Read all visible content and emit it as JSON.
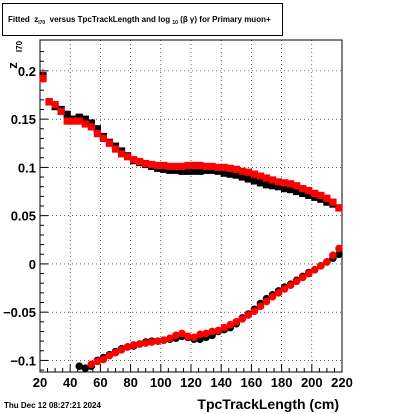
{
  "title": {
    "prefix": "Fitted",
    "z": "z",
    "z_sub": "I70",
    "middle": "versus TpcTrackLength and log",
    "log_sub": "10",
    "bg": "(β γ)",
    "suffix": "for Primary muon+"
  },
  "ylabel": {
    "main": "z",
    "sub": "I70"
  },
  "xlabel": "TpcTrackLength (cm)",
  "timestamp": "Thu Dec 12 08:27:21 2024",
  "colors": {
    "series_a": "#000000",
    "series_b": "#ff0000"
  },
  "chart_data": {
    "type": "scatter",
    "xlim": [
      20,
      220
    ],
    "ylim": [
      -0.112,
      0.232
    ],
    "xticks": [
      20,
      40,
      60,
      80,
      100,
      120,
      140,
      160,
      180,
      200,
      220
    ],
    "yticks": [
      -0.1,
      -0.05,
      0,
      0.05,
      0.1,
      0.15,
      0.2
    ],
    "ytick_labels": [
      "−0.1",
      "−0.05",
      "0",
      "0.05",
      "0.1",
      "0.15",
      "0.2"
    ],
    "grid": true,
    "series": [
      {
        "marker": "square",
        "color": "#000000",
        "x": [
          22,
          26,
          30,
          34,
          38,
          42,
          46,
          50,
          54,
          58,
          62,
          66,
          70,
          74,
          78,
          82,
          86,
          90,
          94,
          98,
          102,
          106,
          110,
          114,
          118,
          122,
          126,
          130,
          134,
          138,
          142,
          146,
          150,
          154,
          158,
          162,
          166,
          170,
          174,
          178,
          182,
          186,
          190,
          194,
          198,
          202,
          206,
          210,
          214,
          218
        ],
        "y": [
          0.195,
          0.168,
          0.163,
          0.16,
          0.155,
          0.15,
          0.152,
          0.15,
          0.146,
          0.14,
          0.132,
          0.126,
          0.122,
          0.117,
          0.112,
          0.107,
          0.105,
          0.103,
          0.101,
          0.099,
          0.098,
          0.097,
          0.097,
          0.096,
          0.096,
          0.096,
          0.096,
          0.097,
          0.097,
          0.096,
          0.094,
          0.093,
          0.092,
          0.09,
          0.088,
          0.086,
          0.084,
          0.082,
          0.081,
          0.08,
          0.078,
          0.077,
          0.075,
          0.073,
          0.071,
          0.069,
          0.067,
          0.064,
          0.062,
          0.058
        ]
      },
      {
        "marker": "square",
        "color": "#ff0000",
        "x": [
          22,
          26,
          30,
          34,
          38,
          42,
          46,
          50,
          54,
          58,
          62,
          66,
          70,
          74,
          78,
          82,
          86,
          90,
          94,
          98,
          102,
          106,
          110,
          114,
          118,
          122,
          126,
          130,
          134,
          138,
          142,
          146,
          150,
          154,
          158,
          162,
          166,
          170,
          174,
          178,
          182,
          186,
          190,
          194,
          198,
          202,
          206,
          210,
          214,
          218
        ],
        "y": [
          0.192,
          0.168,
          0.165,
          0.158,
          0.148,
          0.148,
          0.148,
          0.145,
          0.142,
          0.135,
          0.13,
          0.125,
          0.119,
          0.114,
          0.111,
          0.108,
          0.106,
          0.104,
          0.103,
          0.102,
          0.102,
          0.101,
          0.101,
          0.101,
          0.102,
          0.102,
          0.102,
          0.101,
          0.101,
          0.1,
          0.1,
          0.099,
          0.098,
          0.096,
          0.095,
          0.093,
          0.091,
          0.089,
          0.087,
          0.085,
          0.084,
          0.083,
          0.081,
          0.078,
          0.076,
          0.073,
          0.071,
          0.068,
          0.064,
          0.058
        ]
      },
      {
        "marker": "circle",
        "color": "#000000",
        "x": [
          46,
          50,
          54,
          58,
          62,
          66,
          70,
          74,
          78,
          82,
          86,
          90,
          94,
          98,
          102,
          106,
          110,
          114,
          118,
          122,
          126,
          130,
          134,
          138,
          142,
          146,
          150,
          154,
          158,
          162,
          166,
          170,
          174,
          178,
          182,
          186,
          190,
          194,
          198,
          202,
          206,
          210,
          214,
          218
        ],
        "y": [
          -0.106,
          -0.108,
          -0.106,
          -0.1,
          -0.097,
          -0.094,
          -0.091,
          -0.088,
          -0.086,
          -0.085,
          -0.083,
          -0.081,
          -0.08,
          -0.08,
          -0.079,
          -0.078,
          -0.077,
          -0.075,
          -0.076,
          -0.078,
          -0.078,
          -0.076,
          -0.074,
          -0.07,
          -0.068,
          -0.066,
          -0.062,
          -0.056,
          -0.052,
          -0.047,
          -0.041,
          -0.036,
          -0.032,
          -0.028,
          -0.024,
          -0.021,
          -0.017,
          -0.013,
          -0.009,
          -0.006,
          -0.002,
          0.002,
          0.006,
          0.01
        ]
      },
      {
        "marker": "circle",
        "color": "#ff0000",
        "x": [
          54,
          58,
          62,
          66,
          70,
          74,
          78,
          82,
          86,
          90,
          94,
          98,
          102,
          106,
          110,
          114,
          118,
          122,
          126,
          130,
          134,
          138,
          142,
          146,
          150,
          154,
          158,
          162,
          166,
          170,
          174,
          178,
          182,
          186,
          190,
          194,
          198,
          202,
          206,
          210,
          214,
          218
        ],
        "y": [
          -0.104,
          -0.101,
          -0.099,
          -0.095,
          -0.092,
          -0.089,
          -0.086,
          -0.084,
          -0.083,
          -0.082,
          -0.081,
          -0.08,
          -0.079,
          -0.077,
          -0.074,
          -0.072,
          -0.075,
          -0.076,
          -0.073,
          -0.072,
          -0.07,
          -0.069,
          -0.066,
          -0.063,
          -0.06,
          -0.057,
          -0.053,
          -0.049,
          -0.044,
          -0.039,
          -0.034,
          -0.03,
          -0.026,
          -0.022,
          -0.018,
          -0.014,
          -0.01,
          -0.006,
          -0.002,
          0.002,
          0.009,
          0.016
        ]
      }
    ]
  }
}
